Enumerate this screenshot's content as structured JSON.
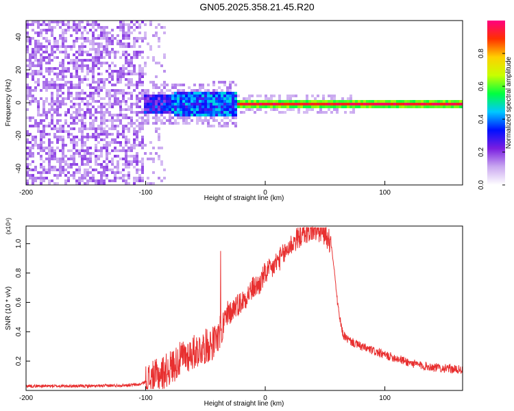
{
  "title": "GN05.2025.358.21.45.R20",
  "chart_data": [
    {
      "type": "heatmap",
      "title": "GN05.2025.358.21.45.R20",
      "xlabel": "Height of straight line (km)",
      "ylabel": "Frequency (Hz)",
      "xlim": [
        -200,
        165
      ],
      "ylim": [
        -50,
        50
      ],
      "x_ticks": [
        "-200",
        "-100",
        "0",
        "100"
      ],
      "y_ticks": [
        "-40",
        "-20",
        "0",
        "20",
        "40"
      ],
      "colorbar": {
        "label": "Normalized spectral amplitude",
        "range": [
          0,
          1
        ],
        "ticks": [
          "0.0",
          "0.2",
          "0.4",
          "0.6",
          "0.8"
        ],
        "colors": [
          "#ffffff",
          "#c9a8f0",
          "#7a1ee0",
          "#0010ff",
          "#00c8ff",
          "#00ff40",
          "#c8ff00",
          "#ffd000",
          "#ff3000",
          "#ff0080"
        ]
      },
      "band_center_hz": 0
    },
    {
      "type": "line",
      "xlabel": "Height of straight line (km)",
      "ylabel": "SNR (10 * v/v)",
      "y_multiplier": "(x10⁴)",
      "xlim": [
        -200,
        165
      ],
      "ylim": [
        0.0,
        1.12
      ],
      "x_ticks": [
        "-200",
        "-100",
        "0",
        "100"
      ],
      "y_ticks": [
        "0.2",
        "0.4",
        "0.6",
        "0.8",
        "1.0"
      ],
      "series": [
        {
          "name": "SNR",
          "color": "#e83030",
          "x": [
            -200,
            -180,
            -160,
            -140,
            -120,
            -105,
            -100,
            -90,
            -80,
            -70,
            -60,
            -50,
            -40,
            -35,
            -30,
            -25,
            -20,
            -15,
            -10,
            -5,
            0,
            5,
            10,
            15,
            20,
            25,
            30,
            35,
            40,
            45,
            50,
            55,
            58,
            60,
            62,
            65,
            70,
            80,
            90,
            100,
            110,
            120,
            130,
            140,
            150,
            165
          ],
          "values": [
            0.03,
            0.03,
            0.03,
            0.03,
            0.035,
            0.04,
            0.06,
            0.1,
            0.15,
            0.22,
            0.26,
            0.3,
            0.34,
            0.45,
            0.52,
            0.58,
            0.6,
            0.65,
            0.7,
            0.72,
            0.8,
            0.82,
            0.88,
            0.92,
            0.98,
            1.02,
            1.06,
            1.08,
            1.09,
            1.08,
            1.07,
            1.0,
            0.8,
            0.62,
            0.5,
            0.38,
            0.34,
            0.3,
            0.27,
            0.24,
            0.22,
            0.19,
            0.17,
            0.16,
            0.15,
            0.14
          ]
        }
      ]
    }
  ]
}
